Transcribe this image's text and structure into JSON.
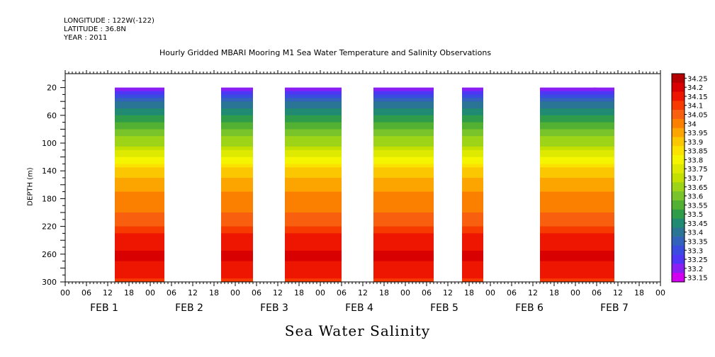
{
  "header": {
    "longitude": "LONGITUDE : 122W(-122)",
    "latitude": "LATITUDE : 36.8N",
    "year": "YEAR : 2011"
  },
  "chart_data": {
    "type": "heatmap",
    "title": "Hourly Gridded MBARI Mooring M1 Sea Water Temperature and Salinity Observations",
    "caption": "Sea Water Salinity",
    "ylabel": "DEPTH (m)",
    "xlabel": "",
    "y_axis": {
      "range": [
        0,
        300
      ],
      "inverted": true,
      "ticks": [
        20,
        60,
        100,
        140,
        180,
        220,
        260,
        300
      ]
    },
    "x_axis": {
      "unit": "hours from FEB 1 00:00",
      "range": [
        0,
        168
      ],
      "hour_tick_labels": [
        "00",
        "06",
        "12",
        "18",
        "00",
        "06",
        "12",
        "18",
        "00",
        "06",
        "12",
        "18",
        "00",
        "06",
        "12",
        "18",
        "00",
        "06",
        "12",
        "18",
        "00",
        "06",
        "12",
        "18",
        "00",
        "06",
        "12",
        "18",
        "00"
      ],
      "day_labels": [
        "FEB  1",
        "FEB  2",
        "FEB  3",
        "FEB  4",
        "FEB  5",
        "FEB  6",
        "FEB  7"
      ]
    },
    "data_depth_range_m": [
      20,
      300
    ],
    "observation_segments_hours": [
      [
        14,
        28
      ],
      [
        44,
        53
      ],
      [
        62,
        78
      ],
      [
        87,
        104
      ],
      [
        112,
        118
      ],
      [
        134,
        150
      ],
      [
        149,
        155
      ]
    ],
    "colorbar": {
      "levels": [
        "34.25",
        "34.2",
        "34.15",
        "34.1",
        "34.05",
        "34",
        "33.95",
        "33.9",
        "33.85",
        "33.8",
        "33.75",
        "33.7",
        "33.65",
        "33.6",
        "33.55",
        "33.5",
        "33.45",
        "33.4",
        "33.35",
        "33.3",
        "33.25",
        "33.2",
        "33.15"
      ],
      "colors": [
        "#b40000",
        "#d80000",
        "#ee1600",
        "#f63a00",
        "#f86010",
        "#fb8000",
        "#fca400",
        "#fbc700",
        "#fbe200",
        "#f5f500",
        "#dde900",
        "#c3e000",
        "#9ed418",
        "#79c42a",
        "#52b133",
        "#2f9c4a",
        "#218a72",
        "#2a7595",
        "#3262bb",
        "#3a4bdf",
        "#4f35f6",
        "#8a1ff4",
        "#d200f0"
      ]
    },
    "salinity_profile_by_depth": [
      {
        "depth": 20,
        "salinity": 33.18
      },
      {
        "depth": 30,
        "salinity": 33.33
      },
      {
        "depth": 45,
        "salinity": 33.42
      },
      {
        "depth": 60,
        "salinity": 33.5
      },
      {
        "depth": 80,
        "salinity": 33.6
      },
      {
        "depth": 100,
        "salinity": 33.68
      },
      {
        "depth": 120,
        "salinity": 33.8
      },
      {
        "depth": 140,
        "salinity": 33.92
      },
      {
        "depth": 170,
        "salinity": 34.0
      },
      {
        "depth": 200,
        "salinity": 34.05
      },
      {
        "depth": 225,
        "salinity": 34.12
      },
      {
        "depth": 240,
        "salinity": 34.18
      },
      {
        "depth": 265,
        "salinity": 34.21
      },
      {
        "depth": 285,
        "salinity": 34.17
      },
      {
        "depth": 300,
        "salinity": 34.13
      }
    ]
  }
}
